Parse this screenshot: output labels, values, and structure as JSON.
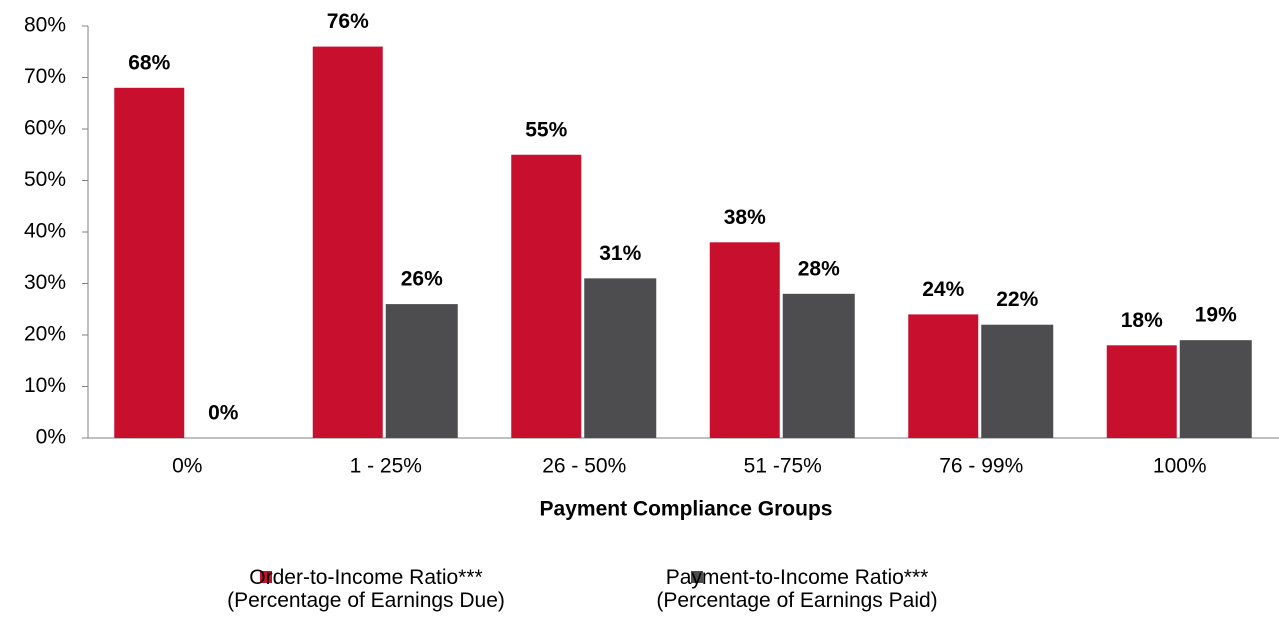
{
  "chart_data": {
    "type": "bar",
    "xlabel": "Payment Compliance Groups",
    "categories": [
      "0%",
      "1 - 25%",
      "26 - 50%",
      "51 -75%",
      "76 - 99%",
      "100%"
    ],
    "series": [
      {
        "name": "Order-to-Income Ratio***\n(Percentage of Earnings Due)",
        "color": "#c8102e",
        "values": [
          68,
          76,
          55,
          38,
          24,
          18
        ],
        "value_labels": [
          "68%",
          "76%",
          "55%",
          "38%",
          "24%",
          "18%"
        ]
      },
      {
        "name": "Payment-to-Income Ratio***\n(Percentage of Earnings Paid)",
        "color": "#4d4d4f",
        "values": [
          0,
          26,
          31,
          28,
          22,
          19
        ],
        "value_labels": [
          "0%",
          "26%",
          "31%",
          "28%",
          "22%",
          "19%"
        ]
      }
    ],
    "ylim": [
      0,
      80
    ],
    "yticks": [
      {
        "value": 0,
        "label": "0%"
      },
      {
        "value": 10,
        "label": "10%"
      },
      {
        "value": 20,
        "label": "20%"
      },
      {
        "value": 30,
        "label": "30%"
      },
      {
        "value": 40,
        "label": "40%"
      },
      {
        "value": 50,
        "label": "50%"
      },
      {
        "value": 60,
        "label": "60%"
      },
      {
        "value": 70,
        "label": "70%"
      },
      {
        "value": 80,
        "label": "80%"
      }
    ],
    "grid": false,
    "legend": "bottom"
  }
}
